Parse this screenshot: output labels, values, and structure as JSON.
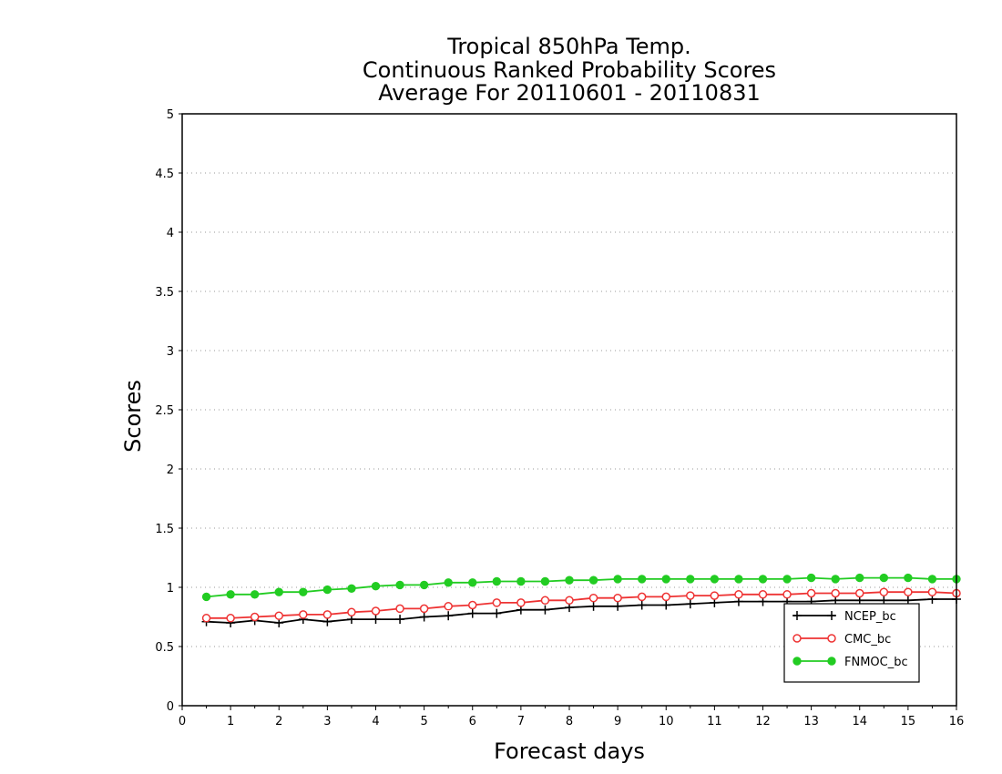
{
  "chart_data": {
    "type": "line",
    "title": [
      "Tropical 850hPa Temp.",
      "Continuous Ranked Probability Scores",
      "Average For 20110601 - 20110831"
    ],
    "xlabel": "Forecast days",
    "ylabel": "Scores",
    "xlim": [
      0,
      16
    ],
    "ylim": [
      0,
      5
    ],
    "x_ticks": [
      0,
      1,
      2,
      3,
      4,
      5,
      6,
      7,
      8,
      9,
      10,
      11,
      12,
      13,
      14,
      15,
      16
    ],
    "y_ticks": [
      0,
      0.5,
      1,
      1.5,
      2,
      2.5,
      3,
      3.5,
      4,
      4.5,
      5
    ],
    "y_tick_labels": [
      "0",
      "0.5",
      "1",
      "1.5",
      "2",
      "2.5",
      "3",
      "3.5",
      "4",
      "4.5",
      "5"
    ],
    "grid": "horizontal dotted",
    "legend_position": "bottom-right",
    "x": [
      0.5,
      1,
      1.5,
      2,
      2.5,
      3,
      3.5,
      4,
      4.5,
      5,
      5.5,
      6,
      6.5,
      7,
      7.5,
      8,
      8.5,
      9,
      9.5,
      10,
      10.5,
      11,
      11.5,
      12,
      12.5,
      13,
      13.5,
      14,
      14.5,
      15,
      15.5,
      16
    ],
    "series": [
      {
        "name": "NCEP_bc",
        "color": "#000000",
        "marker": "plus",
        "values": [
          0.71,
          0.7,
          0.72,
          0.7,
          0.73,
          0.71,
          0.73,
          0.73,
          0.73,
          0.75,
          0.76,
          0.78,
          0.78,
          0.81,
          0.81,
          0.83,
          0.84,
          0.84,
          0.85,
          0.85,
          0.86,
          0.87,
          0.88,
          0.88,
          0.88,
          0.88,
          0.89,
          0.89,
          0.89,
          0.89,
          0.9,
          0.9
        ]
      },
      {
        "name": "CMC_bc",
        "color": "#ee3333",
        "marker": "open-circle",
        "values": [
          0.74,
          0.74,
          0.75,
          0.76,
          0.77,
          0.77,
          0.79,
          0.8,
          0.82,
          0.82,
          0.84,
          0.85,
          0.87,
          0.87,
          0.89,
          0.89,
          0.91,
          0.91,
          0.92,
          0.92,
          0.93,
          0.93,
          0.94,
          0.94,
          0.94,
          0.95,
          0.95,
          0.95,
          0.96,
          0.96,
          0.96,
          0.95
        ]
      },
      {
        "name": "FNMOC_bc",
        "color": "#22cc22",
        "marker": "filled-circle",
        "values": [
          0.92,
          0.94,
          0.94,
          0.96,
          0.96,
          0.98,
          0.99,
          1.01,
          1.02,
          1.02,
          1.04,
          1.04,
          1.05,
          1.05,
          1.05,
          1.06,
          1.06,
          1.07,
          1.07,
          1.07,
          1.07,
          1.07,
          1.07,
          1.07,
          1.07,
          1.08,
          1.07,
          1.08,
          1.08,
          1.08,
          1.07,
          1.07
        ]
      }
    ]
  }
}
